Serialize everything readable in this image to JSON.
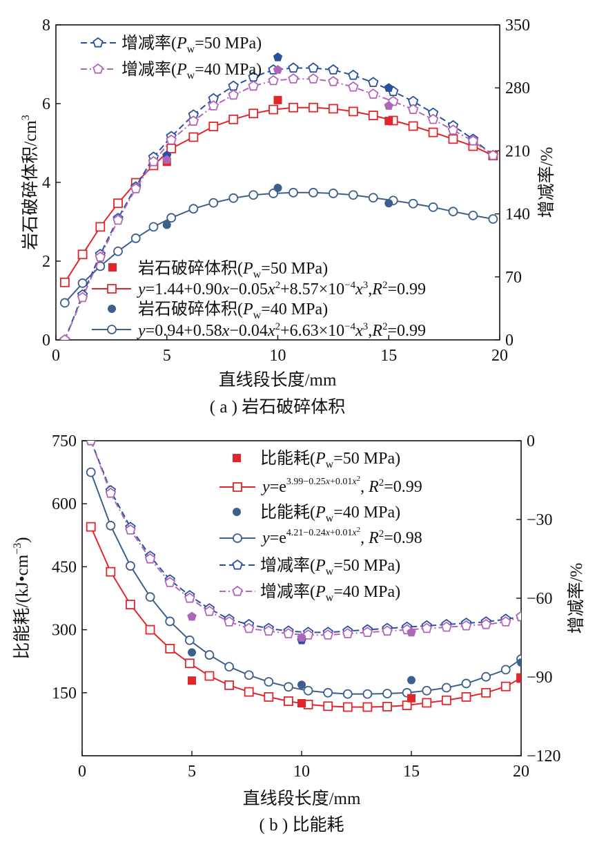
{
  "chart_data": [
    {
      "type": "line",
      "caption": "( a ) 岩石破碎体积",
      "xlabel": "直线段长度/mm",
      "ylabel": "岩石破碎体积/cm³",
      "y2label": "增减率/%",
      "xlim": [
        0,
        20
      ],
      "ylim": [
        0,
        8
      ],
      "y2lim": [
        0,
        350
      ],
      "xticks": [
        "0",
        "5",
        "10",
        "15",
        "20"
      ],
      "yticks": [
        "0",
        "2",
        "4",
        "6",
        "8"
      ],
      "y2ticks": [
        "0",
        "70",
        "140",
        "210",
        "280",
        "350"
      ],
      "legend_top": [
        "增减率(Pw=50 MPa)",
        "增减率(Pw=40 MPa)"
      ],
      "legend_bottom": [
        "岩石破碎体积(Pw=50 MPa)",
        "y=1.44+0.90x−0.05x²+8.57×10⁻⁴x³,R²=0.99",
        "岩石破碎体积(Pw=40 MPa)",
        "y=0.94+0.58x−0.04x²+6.63×10⁻⁴x³,R²=0.99"
      ],
      "colors": {
        "p50": "#e0262b",
        "p40": "#3d5f8c",
        "r50": "#2a4f9c",
        "r40": "#b066b8"
      },
      "measured": [
        {
          "name": "岩石破碎体积(Pw=50 MPa)",
          "axis": "left",
          "color": "#e0262b",
          "marker": "filled-square",
          "x": [
            5,
            10,
            15
          ],
          "y": [
            4.52,
            6.09,
            5.56
          ]
        },
        {
          "name": "岩石破碎体积(Pw=40 MPa)",
          "axis": "left",
          "color": "#3d5f8c",
          "marker": "filled-circle",
          "x": [
            5,
            10,
            15
          ],
          "y": [
            2.92,
            3.86,
            3.47
          ]
        },
        {
          "name": "增减率(Pw=50 MPa)",
          "axis": "right",
          "color": "#2a4f9c",
          "marker": "filled-pentagon",
          "x": [
            5,
            10,
            15
          ],
          "y": [
            205,
            314,
            280
          ]
        },
        {
          "name": "增减率(Pw=40 MPa)",
          "axis": "right",
          "color": "#b066b8",
          "marker": "filled-pentagon",
          "x": [
            5,
            10,
            15
          ],
          "y": [
            200,
            300,
            260
          ]
        }
      ],
      "fits": [
        {
          "name": "y=1.44+0.90x−0.05x²+8.57×10⁻⁴x³,R²=0.99",
          "axis": "left",
          "color": "#e0262b",
          "marker": "open-square",
          "dash": "solid",
          "x": [
            0.4,
            1.2,
            2.0,
            2.8,
            3.6,
            4.4,
            5.2,
            6.2,
            7.1,
            8.0,
            8.9,
            9.8,
            10.7,
            11.6,
            12.5,
            13.4,
            14.3,
            15.2,
            16.1,
            17.0,
            17.9,
            18.8,
            19.7
          ],
          "y": [
            1.46,
            2.17,
            2.87,
            3.47,
            3.99,
            4.43,
            4.86,
            5.15,
            5.42,
            5.6,
            5.75,
            5.85,
            5.9,
            5.9,
            5.87,
            5.8,
            5.7,
            5.57,
            5.43,
            5.27,
            5.1,
            4.92,
            4.68
          ]
        },
        {
          "name": "y=0.94+0.58x−0.04x²+6.63×10⁻⁴x³,R²=0.99",
          "axis": "left",
          "color": "#3d5f8c",
          "marker": "open-circle",
          "dash": "solid",
          "x": [
            0.4,
            1.2,
            2.0,
            2.8,
            3.6,
            4.4,
            5.2,
            6.2,
            7.1,
            8.0,
            8.9,
            9.8,
            10.7,
            11.6,
            12.5,
            13.4,
            14.3,
            15.2,
            16.1,
            17.0,
            17.9,
            18.8,
            19.7
          ],
          "y": [
            0.94,
            1.44,
            1.87,
            2.25,
            2.58,
            2.87,
            3.1,
            3.33,
            3.48,
            3.6,
            3.68,
            3.72,
            3.74,
            3.74,
            3.72,
            3.68,
            3.61,
            3.54,
            3.46,
            3.37,
            3.26,
            3.16,
            3.07
          ]
        },
        {
          "name": "增减率(Pw=50 MPa)",
          "axis": "right",
          "color": "#2a4f9c",
          "marker": "open-pentagon",
          "dash": "dashed",
          "x": [
            0.4,
            1.2,
            2.0,
            2.8,
            3.6,
            4.4,
            5.2,
            6.2,
            7.1,
            8.0,
            8.9,
            9.8,
            10.7,
            11.6,
            12.5,
            13.4,
            14.3,
            15.2,
            16.1,
            17.0,
            17.9,
            18.8,
            19.7
          ],
          "y": [
            0,
            50,
            95,
            135,
            170,
            203,
            226,
            250,
            268,
            282,
            292,
            300,
            302,
            302,
            300,
            294,
            286,
            276,
            265,
            252,
            238,
            223,
            205
          ]
        },
        {
          "name": "增减率(Pw=40 MPa)",
          "axis": "right",
          "color": "#b066b8",
          "marker": "open-pentagon",
          "dash": "dashdot",
          "x": [
            0.4,
            1.2,
            2.0,
            2.8,
            3.6,
            4.4,
            5.2,
            6.2,
            7.1,
            8.0,
            8.9,
            9.8,
            10.7,
            11.6,
            12.5,
            13.4,
            14.3,
            15.2,
            16.1,
            17.0,
            17.9,
            18.8,
            19.7
          ],
          "y": [
            0,
            47,
            92,
            133,
            168,
            198,
            222,
            243,
            260,
            272,
            282,
            288,
            290,
            290,
            287,
            281,
            273,
            265,
            256,
            245,
            233,
            221,
            205
          ]
        }
      ]
    },
    {
      "type": "line",
      "caption": "( b ) 比能耗",
      "xlabel": "直线段长度/mm",
      "ylabel": "比能耗/(kJ•cm⁻³)",
      "y2label": "增减率/%",
      "xlim": [
        0,
        20
      ],
      "ylim": [
        0,
        750
      ],
      "y2lim": [
        -120,
        0
      ],
      "xticks": [
        "0",
        "5",
        "10",
        "15",
        "20"
      ],
      "yticks": [
        "150",
        "300",
        "450",
        "600",
        "750"
      ],
      "y2ticks": [
        "0",
        "−30",
        "−60",
        "−90",
        "−120"
      ],
      "legend": [
        "比能耗(Pw=50 MPa)",
        "y=e^(3.99−0.25x+0.01x²), R²=0.99",
        "比能耗(Pw=40 MPa)",
        "y=e^(4.21−0.24x+0.01x²), R²=0.98",
        "增减率(Pw=50 MPa)",
        "增减率(Pw=40 MPa)"
      ],
      "measured": [
        {
          "name": "比能耗(Pw=50 MPa)",
          "axis": "left",
          "color": "#e0262b",
          "marker": "filled-square",
          "x": [
            5,
            10,
            15,
            20
          ],
          "y": [
            179,
            125,
            137,
            184
          ]
        },
        {
          "name": "比能耗(Pw=40 MPa)",
          "axis": "left",
          "color": "#3d5f8c",
          "marker": "filled-circle",
          "x": [
            5,
            10,
            15,
            20
          ],
          "y": [
            246,
            169,
            180,
            222
          ]
        },
        {
          "name": "增减率(Pw=50 MPa)",
          "axis": "right",
          "color": "#2a4f9c",
          "marker": "filled-pentagon",
          "x": [
            5,
            10,
            15
          ],
          "y": [
            -67,
            -76,
            -73
          ]
        },
        {
          "name": "增减率(Pw=40 MPa)",
          "axis": "right",
          "color": "#b066b8",
          "marker": "filled-pentagon",
          "x": [
            5,
            10,
            15
          ],
          "y": [
            -67,
            -75,
            -73
          ]
        }
      ],
      "fits": [
        {
          "name": "y=e^(3.99−0.25x+0.01x²), R²=0.99",
          "axis": "left",
          "color": "#e0262b",
          "marker": "open-square",
          "dash": "solid",
          "x": [
            0.4,
            1.3,
            2.2,
            3.1,
            4.0,
            4.9,
            5.8,
            6.7,
            7.6,
            8.5,
            9.4,
            10.3,
            11.2,
            12.1,
            13.0,
            13.9,
            14.8,
            15.7,
            16.6,
            17.5,
            18.4,
            19.3,
            20.0
          ],
          "y": [
            545,
            438,
            360,
            300,
            255,
            220,
            190,
            168,
            152,
            140,
            130,
            122,
            118,
            116,
            116,
            117,
            120,
            126,
            132,
            140,
            150,
            165,
            185
          ]
        },
        {
          "name": "y=e^(4.21−0.24x+0.01x²), R²=0.98",
          "axis": "left",
          "color": "#3d5f8c",
          "marker": "open-circle",
          "dash": "solid",
          "x": [
            0.4,
            1.3,
            2.2,
            3.1,
            4.0,
            4.9,
            5.8,
            6.7,
            7.6,
            8.5,
            9.4,
            10.3,
            11.2,
            12.1,
            13.0,
            13.9,
            14.8,
            15.7,
            16.6,
            17.5,
            18.4,
            19.3,
            20.0
          ],
          "y": [
            675,
            548,
            452,
            378,
            320,
            275,
            240,
            212,
            192,
            176,
            164,
            155,
            150,
            147,
            147,
            148,
            150,
            155,
            162,
            172,
            188,
            205,
            230
          ]
        },
        {
          "name": "增减率(Pw=50 MPa)",
          "axis": "right",
          "color": "#2a4f9c",
          "marker": "open-pentagon",
          "dash": "dashed",
          "x": [
            0.4,
            1.3,
            2.2,
            3.1,
            4.0,
            4.9,
            5.8,
            6.7,
            7.6,
            8.5,
            9.4,
            10.3,
            11.2,
            12.1,
            13.0,
            13.9,
            14.8,
            15.7,
            16.6,
            17.5,
            18.4,
            19.3,
            20.0
          ],
          "y": [
            0,
            -19,
            -33,
            -44,
            -53,
            -59,
            -64,
            -68,
            -70,
            -71.5,
            -72.5,
            -73,
            -73,
            -72.5,
            -72,
            -71.5,
            -71,
            -70.5,
            -70,
            -69.5,
            -69,
            -68,
            -67
          ]
        },
        {
          "name": "增减率(Pw=40 MPa)",
          "axis": "right",
          "color": "#b066b8",
          "marker": "open-pentagon",
          "dash": "dashdot",
          "x": [
            0.4,
            1.3,
            2.2,
            3.1,
            4.0,
            4.9,
            5.8,
            6.7,
            7.6,
            8.5,
            9.4,
            10.3,
            11.2,
            12.1,
            13.0,
            13.9,
            14.8,
            15.7,
            16.6,
            17.5,
            18.4,
            19.3,
            20.0
          ],
          "y": [
            0,
            -20,
            -34,
            -45,
            -54,
            -60,
            -65,
            -69,
            -71.5,
            -72.5,
            -73.5,
            -74,
            -74,
            -73.5,
            -73,
            -72.5,
            -72,
            -71.5,
            -71,
            -70.5,
            -70,
            -69,
            -67
          ]
        }
      ]
    }
  ]
}
